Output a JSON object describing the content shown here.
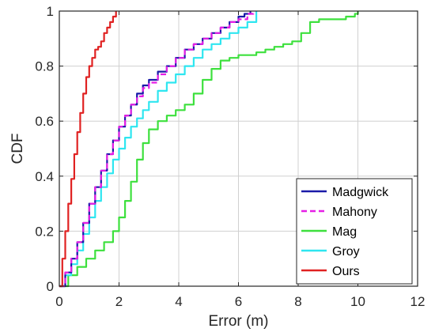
{
  "chart_data": {
    "type": "line",
    "title": "",
    "xlabel": "Error (m)",
    "ylabel": "CDF",
    "xlim": [
      0,
      12
    ],
    "ylim": [
      0,
      1
    ],
    "xticks": [
      0,
      2,
      4,
      6,
      8,
      10,
      12
    ],
    "yticks": [
      0,
      0.2,
      0.4,
      0.6,
      0.8,
      1
    ],
    "grid": true,
    "legend_position": "bottom-right",
    "series": [
      {
        "name": "Madgwick",
        "color": "#1a1aa8",
        "dash": "solid",
        "x": [
          0,
          0.2,
          0.4,
          0.6,
          0.8,
          1.0,
          1.2,
          1.4,
          1.6,
          1.8,
          2.0,
          2.2,
          2.4,
          2.6,
          2.8,
          3.0,
          3.3,
          3.6,
          3.9,
          4.2,
          4.5,
          4.8,
          5.1,
          5.4,
          5.7,
          6.0,
          6.2,
          6.4
        ],
        "y": [
          0,
          0.05,
          0.1,
          0.16,
          0.23,
          0.3,
          0.36,
          0.42,
          0.48,
          0.53,
          0.58,
          0.62,
          0.66,
          0.7,
          0.73,
          0.75,
          0.78,
          0.8,
          0.83,
          0.86,
          0.88,
          0.9,
          0.92,
          0.94,
          0.96,
          0.98,
          0.99,
          1.0
        ]
      },
      {
        "name": "Mahony",
        "color": "#e61ee6",
        "dash": "dashed",
        "x": [
          0,
          0.2,
          0.4,
          0.6,
          0.8,
          1.0,
          1.2,
          1.4,
          1.6,
          1.8,
          2.0,
          2.2,
          2.4,
          2.6,
          2.8,
          3.0,
          3.3,
          3.6,
          3.9,
          4.2,
          4.5,
          4.8,
          5.1,
          5.4,
          5.7,
          6.0,
          6.3,
          6.5
        ],
        "y": [
          0,
          0.05,
          0.1,
          0.16,
          0.23,
          0.3,
          0.36,
          0.42,
          0.48,
          0.53,
          0.58,
          0.62,
          0.66,
          0.69,
          0.72,
          0.74,
          0.77,
          0.8,
          0.83,
          0.86,
          0.88,
          0.9,
          0.92,
          0.94,
          0.96,
          0.97,
          0.99,
          1.0
        ]
      },
      {
        "name": "Mag",
        "color": "#3de03d",
        "dash": "solid",
        "x": [
          0,
          0.3,
          0.6,
          0.9,
          1.2,
          1.5,
          1.8,
          2.0,
          2.2,
          2.4,
          2.6,
          2.8,
          3.0,
          3.3,
          3.6,
          3.9,
          4.2,
          4.5,
          4.8,
          5.1,
          5.4,
          5.7,
          6.0,
          6.3,
          6.6,
          6.9,
          7.2,
          7.5,
          7.8,
          8.1,
          8.4,
          8.7,
          9.0,
          9.3,
          9.6,
          9.9,
          10.0
        ],
        "y": [
          0,
          0.04,
          0.07,
          0.1,
          0.13,
          0.16,
          0.2,
          0.25,
          0.31,
          0.38,
          0.46,
          0.52,
          0.57,
          0.6,
          0.62,
          0.64,
          0.66,
          0.7,
          0.75,
          0.79,
          0.82,
          0.83,
          0.84,
          0.84,
          0.85,
          0.86,
          0.87,
          0.88,
          0.89,
          0.92,
          0.96,
          0.97,
          0.97,
          0.97,
          0.98,
          0.99,
          1.0
        ]
      },
      {
        "name": "Groy",
        "color": "#2ee6f0",
        "dash": "solid",
        "x": [
          0,
          0.2,
          0.4,
          0.6,
          0.8,
          1.0,
          1.2,
          1.4,
          1.6,
          1.8,
          2.0,
          2.2,
          2.4,
          2.6,
          2.8,
          3.0,
          3.3,
          3.6,
          3.9,
          4.2,
          4.5,
          4.8,
          5.1,
          5.4,
          5.7,
          6.0,
          6.3,
          6.6
        ],
        "y": [
          0,
          0.04,
          0.08,
          0.13,
          0.19,
          0.25,
          0.31,
          0.36,
          0.41,
          0.46,
          0.5,
          0.54,
          0.58,
          0.61,
          0.64,
          0.67,
          0.71,
          0.74,
          0.77,
          0.8,
          0.83,
          0.86,
          0.88,
          0.9,
          0.92,
          0.94,
          0.96,
          1.0
        ]
      },
      {
        "name": "Ours",
        "color": "#e02222",
        "dash": "solid",
        "x": [
          0,
          0.1,
          0.2,
          0.3,
          0.4,
          0.5,
          0.6,
          0.7,
          0.8,
          0.9,
          1.0,
          1.1,
          1.2,
          1.3,
          1.4,
          1.5,
          1.6,
          1.7,
          1.8,
          1.9
        ],
        "y": [
          0,
          0.1,
          0.2,
          0.3,
          0.39,
          0.48,
          0.56,
          0.63,
          0.7,
          0.76,
          0.8,
          0.83,
          0.86,
          0.87,
          0.89,
          0.92,
          0.94,
          0.96,
          0.98,
          1.0
        ]
      }
    ]
  }
}
